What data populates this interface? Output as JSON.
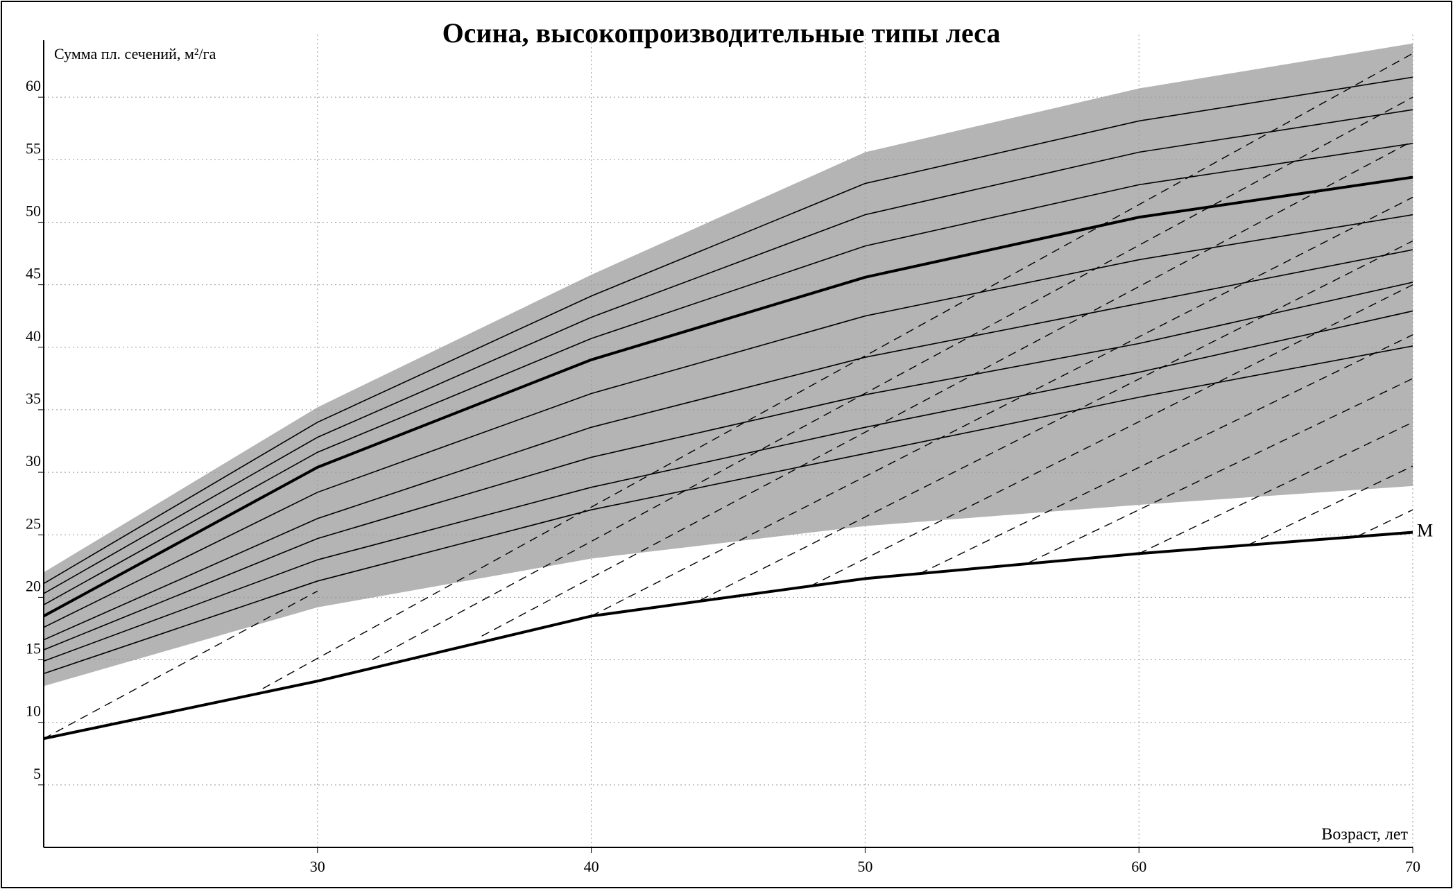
{
  "chart_data": {
    "type": "line",
    "title": "Осина, высокопроизводительные типы леса",
    "y_label": "Сумма пл. сечений, м²/га",
    "x_label": "Возраст, лет",
    "xlim": [
      20,
      70
    ],
    "xticks": [
      30,
      40,
      50,
      60,
      70
    ],
    "ylim": [
      0,
      65
    ],
    "yticks": [
      5,
      10,
      15,
      20,
      25,
      30,
      35,
      40,
      45,
      50,
      55,
      60
    ],
    "grid": true,
    "band": {
      "color": "#b4b4b4",
      "x": [
        20,
        30,
        40,
        50,
        60,
        70
      ],
      "upper": [
        22,
        35.2,
        45.8,
        55.6,
        60.7,
        64.3
      ],
      "lower": [
        12.9,
        19.2,
        23.1,
        25.7,
        27.4,
        28.9
      ]
    },
    "series": [
      {
        "color": "#000000",
        "style": "thin",
        "x": [
          20,
          30,
          40,
          50,
          60,
          70
        ],
        "values": [
          21.1,
          34.0,
          44.1,
          53.1,
          58.1,
          61.6
        ]
      },
      {
        "color": "#000000",
        "style": "thin",
        "x": [
          20,
          30,
          40,
          50,
          60,
          70
        ],
        "values": [
          20.3,
          32.8,
          42.4,
          50.6,
          55.6,
          59.0
        ]
      },
      {
        "color": "#000000",
        "style": "thin",
        "x": [
          20,
          30,
          40,
          50,
          60,
          70
        ],
        "values": [
          19.4,
          31.6,
          40.7,
          48.1,
          53.0,
          56.3
        ]
      },
      {
        "color": "#000000",
        "style": "bold",
        "x": [
          20,
          30,
          40,
          50,
          60,
          70
        ],
        "values": [
          18.5,
          30.4,
          39.0,
          45.6,
          50.4,
          53.6
        ]
      },
      {
        "color": "#000000",
        "style": "thin",
        "x": [
          20,
          30,
          40,
          50,
          60,
          70
        ],
        "values": [
          17.6,
          28.4,
          36.3,
          42.5,
          47.0,
          50.6
        ]
      },
      {
        "color": "#000000",
        "style": "thin",
        "x": [
          20,
          30,
          40,
          50,
          60,
          70
        ],
        "values": [
          16.6,
          26.3,
          33.6,
          39.2,
          43.5,
          47.8
        ]
      },
      {
        "color": "#000000",
        "style": "thin",
        "x": [
          20,
          30,
          40,
          50,
          60,
          70
        ],
        "values": [
          15.8,
          24.7,
          31.2,
          36.2,
          40.3,
          45.2
        ]
      },
      {
        "color": "#000000",
        "style": "thin",
        "x": [
          20,
          30,
          40,
          50,
          60,
          70
        ],
        "values": [
          14.9,
          23.0,
          28.8,
          33.6,
          38.0,
          42.9
        ]
      },
      {
        "color": "#000000",
        "style": "thin",
        "x": [
          20,
          30,
          40,
          50,
          60,
          70
        ],
        "values": [
          13.9,
          21.3,
          27.0,
          31.5,
          36.0,
          40.1
        ]
      },
      {
        "name": "M",
        "color": "#000000",
        "style": "bold",
        "x": [
          20,
          30,
          40,
          50,
          60,
          70
        ],
        "values": [
          8.7,
          13.3,
          18.5,
          21.5,
          23.5,
          25.2
        ]
      },
      {
        "color": "#000000",
        "style": "dashed",
        "x": [
          28,
          70
        ],
        "values": [
          12.7,
          63.5
        ]
      },
      {
        "color": "#000000",
        "style": "dashed",
        "x": [
          32,
          70
        ],
        "values": [
          15.0,
          60
        ]
      },
      {
        "color": "#000000",
        "style": "dashed",
        "x": [
          36,
          70
        ],
        "values": [
          16.9,
          56.5
        ]
      },
      {
        "color": "#000000",
        "style": "dashed",
        "x": [
          40,
          70
        ],
        "values": [
          18.5,
          52
        ]
      },
      {
        "color": "#000000",
        "style": "dashed",
        "x": [
          44,
          70
        ],
        "values": [
          19.8,
          48.5
        ]
      },
      {
        "color": "#000000",
        "style": "dashed",
        "x": [
          48,
          70
        ],
        "values": [
          20.9,
          45
        ]
      },
      {
        "color": "#000000",
        "style": "dashed",
        "x": [
          52,
          70
        ],
        "values": [
          21.9,
          41
        ]
      },
      {
        "color": "#000000",
        "style": "dashed",
        "x": [
          56,
          70
        ],
        "values": [
          22.8,
          37.5
        ]
      },
      {
        "color": "#000000",
        "style": "dashed",
        "x": [
          60,
          70
        ],
        "values": [
          23.5,
          34
        ]
      },
      {
        "color": "#000000",
        "style": "dashed",
        "x": [
          64,
          70
        ],
        "values": [
          24.2,
          30.5
        ]
      },
      {
        "color": "#000000",
        "style": "dashed",
        "x": [
          68,
          70
        ],
        "values": [
          24.9,
          27
        ]
      },
      {
        "color": "#000000",
        "style": "dashed",
        "x": [
          20,
          30
        ],
        "values": [
          8.7,
          20.5
        ]
      }
    ]
  }
}
